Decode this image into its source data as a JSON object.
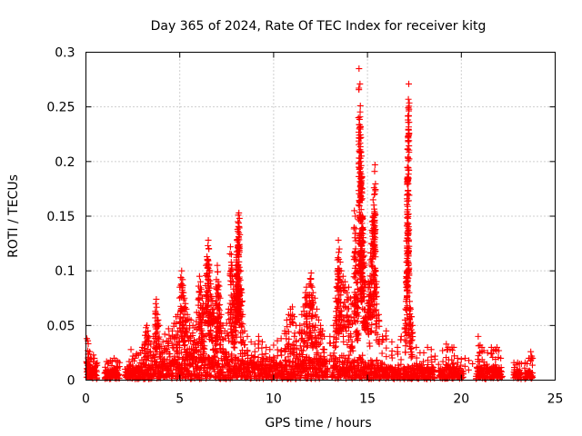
{
  "chart_data": {
    "type": "scatter",
    "title": "Day 365 of 2024, Rate Of TEC Index for receiver kitg",
    "xlabel": "GPS time / hours",
    "ylabel": "ROTI / TECUs",
    "xlim": [
      0,
      25
    ],
    "ylim": [
      0,
      0.3
    ],
    "grid": true,
    "marker": "+",
    "color": "#ff0000",
    "x_ticks": [
      0,
      5,
      10,
      15,
      20,
      25
    ],
    "x_tick_labels": [
      "0",
      "5",
      "10",
      "15",
      "20",
      "25"
    ],
    "y_ticks": [
      0,
      0.05,
      0.1,
      0.15,
      0.2,
      0.25,
      0.3
    ],
    "y_tick_labels": [
      "0",
      "0.05",
      "0.1",
      "0.15",
      "0.2",
      "0.25",
      "0.3"
    ],
    "series": [
      {
        "name": "ROTI",
        "points": [
          [
            0.05,
            0.038
          ],
          [
            0.1,
            0.036
          ],
          [
            0.1,
            0.027
          ],
          [
            0.15,
            0.024
          ],
          [
            0.2,
            0.026
          ],
          [
            0.25,
            0.02
          ],
          [
            0.3,
            0.019
          ],
          [
            0.4,
            0.023
          ],
          [
            0.45,
            0.02
          ],
          [
            0.55,
            0.015
          ],
          [
            0.6,
            0.016
          ],
          [
            1.1,
            0.017
          ],
          [
            1.2,
            0.016
          ],
          [
            1.3,
            0.018
          ],
          [
            1.4,
            0.017
          ],
          [
            1.5,
            0.02
          ],
          [
            1.6,
            0.018
          ],
          [
            1.7,
            0.017
          ],
          [
            1.8,
            0.016
          ],
          [
            2.2,
            0.012
          ],
          [
            2.3,
            0.017
          ],
          [
            2.4,
            0.028
          ],
          [
            2.5,
            0.022
          ],
          [
            2.6,
            0.02
          ],
          [
            2.7,
            0.024
          ],
          [
            2.8,
            0.023
          ],
          [
            2.9,
            0.025
          ],
          [
            3.0,
            0.03
          ],
          [
            3.1,
            0.029
          ],
          [
            3.15,
            0.041
          ],
          [
            3.2,
            0.048
          ],
          [
            3.25,
            0.05
          ],
          [
            3.3,
            0.045
          ],
          [
            3.35,
            0.04
          ],
          [
            3.45,
            0.033
          ],
          [
            3.6,
            0.04
          ],
          [
            3.7,
            0.063
          ],
          [
            3.72,
            0.07
          ],
          [
            3.75,
            0.074
          ],
          [
            3.8,
            0.06
          ],
          [
            3.85,
            0.055
          ],
          [
            3.9,
            0.05
          ],
          [
            4.0,
            0.031
          ],
          [
            4.1,
            0.035
          ],
          [
            4.2,
            0.042
          ],
          [
            4.3,
            0.036
          ],
          [
            4.4,
            0.047
          ],
          [
            4.5,
            0.038
          ],
          [
            4.6,
            0.045
          ],
          [
            4.7,
            0.052
          ],
          [
            4.8,
            0.058
          ],
          [
            4.9,
            0.06
          ],
          [
            5.0,
            0.085
          ],
          [
            5.05,
            0.094
          ],
          [
            5.1,
            0.1
          ],
          [
            5.15,
            0.092
          ],
          [
            5.2,
            0.08
          ],
          [
            5.25,
            0.075
          ],
          [
            5.3,
            0.07
          ],
          [
            5.35,
            0.065
          ],
          [
            5.4,
            0.06
          ],
          [
            5.5,
            0.056
          ],
          [
            5.6,
            0.055
          ],
          [
            5.7,
            0.05
          ],
          [
            5.8,
            0.048
          ],
          [
            5.9,
            0.062
          ],
          [
            6.0,
            0.086
          ],
          [
            6.05,
            0.095
          ],
          [
            6.1,
            0.09
          ],
          [
            6.15,
            0.083
          ],
          [
            6.2,
            0.075
          ],
          [
            6.25,
            0.07
          ],
          [
            6.3,
            0.062
          ],
          [
            6.4,
            0.105
          ],
          [
            6.45,
            0.113
          ],
          [
            6.5,
            0.123
          ],
          [
            6.52,
            0.128
          ],
          [
            6.55,
            0.12
          ],
          [
            6.6,
            0.1
          ],
          [
            6.65,
            0.088
          ],
          [
            6.7,
            0.075
          ],
          [
            6.75,
            0.072
          ],
          [
            6.8,
            0.065
          ],
          [
            6.9,
            0.07
          ],
          [
            6.95,
            0.092
          ],
          [
            7.0,
            0.105
          ],
          [
            7.02,
            0.099
          ],
          [
            7.05,
            0.09
          ],
          [
            7.1,
            0.086
          ],
          [
            7.15,
            0.075
          ],
          [
            7.2,
            0.06
          ],
          [
            7.3,
            0.05
          ],
          [
            7.4,
            0.045
          ],
          [
            7.5,
            0.052
          ],
          [
            7.6,
            0.065
          ],
          [
            7.7,
            0.122
          ],
          [
            7.75,
            0.115
          ],
          [
            7.8,
            0.095
          ],
          [
            7.85,
            0.09
          ],
          [
            7.9,
            0.079
          ],
          [
            7.95,
            0.075
          ],
          [
            8.0,
            0.105
          ],
          [
            8.02,
            0.11
          ],
          [
            8.05,
            0.128
          ],
          [
            8.08,
            0.138
          ],
          [
            8.1,
            0.145
          ],
          [
            8.12,
            0.151
          ],
          [
            8.15,
            0.153
          ],
          [
            8.18,
            0.148
          ],
          [
            8.2,
            0.133
          ],
          [
            8.25,
            0.1
          ],
          [
            8.3,
            0.08
          ],
          [
            8.35,
            0.06
          ],
          [
            8.45,
            0.045
          ],
          [
            8.6,
            0.04
          ],
          [
            8.8,
            0.035
          ],
          [
            9.0,
            0.033
          ],
          [
            9.2,
            0.04
          ],
          [
            9.4,
            0.035
          ],
          [
            9.6,
            0.03
          ],
          [
            9.8,
            0.028
          ],
          [
            10.0,
            0.032
          ],
          [
            10.2,
            0.036
          ],
          [
            10.4,
            0.038
          ],
          [
            10.6,
            0.045
          ],
          [
            10.7,
            0.055
          ],
          [
            10.8,
            0.06
          ],
          [
            10.9,
            0.065
          ],
          [
            11.0,
            0.067
          ],
          [
            11.1,
            0.058
          ],
          [
            11.2,
            0.05
          ],
          [
            11.4,
            0.05
          ],
          [
            11.5,
            0.06
          ],
          [
            11.6,
            0.067
          ],
          [
            11.7,
            0.08
          ],
          [
            11.75,
            0.085
          ],
          [
            11.8,
            0.078
          ],
          [
            11.9,
            0.088
          ],
          [
            11.95,
            0.093
          ],
          [
            12.0,
            0.098
          ],
          [
            12.05,
            0.085
          ],
          [
            12.1,
            0.08
          ],
          [
            12.2,
            0.075
          ],
          [
            12.3,
            0.065
          ],
          [
            12.4,
            0.055
          ],
          [
            12.5,
            0.05
          ],
          [
            12.6,
            0.045
          ],
          [
            12.7,
            0.04
          ],
          [
            13.0,
            0.04
          ],
          [
            13.2,
            0.05
          ],
          [
            13.3,
            0.075
          ],
          [
            13.35,
            0.085
          ],
          [
            13.4,
            0.11
          ],
          [
            13.45,
            0.128
          ],
          [
            13.5,
            0.12
          ],
          [
            13.55,
            0.108
          ],
          [
            13.6,
            0.1
          ],
          [
            13.7,
            0.095
          ],
          [
            13.8,
            0.09
          ],
          [
            13.9,
            0.08
          ],
          [
            14.0,
            0.085
          ],
          [
            14.1,
            0.075
          ],
          [
            14.2,
            0.07
          ],
          [
            14.3,
            0.155
          ],
          [
            14.35,
            0.15
          ],
          [
            14.4,
            0.11
          ],
          [
            14.45,
            0.1
          ],
          [
            14.5,
            0.098
          ],
          [
            14.55,
            0.285
          ],
          [
            14.6,
            0.271
          ],
          [
            14.62,
            0.251
          ],
          [
            14.65,
            0.222
          ],
          [
            14.68,
            0.205
          ],
          [
            14.7,
            0.185
          ],
          [
            14.72,
            0.166
          ],
          [
            14.75,
            0.148
          ],
          [
            14.8,
            0.126
          ],
          [
            14.85,
            0.105
          ],
          [
            14.9,
            0.085
          ],
          [
            15.0,
            0.07
          ],
          [
            15.05,
            0.09
          ],
          [
            15.1,
            0.085
          ],
          [
            15.15,
            0.11
          ],
          [
            15.2,
            0.125
          ],
          [
            15.25,
            0.145
          ],
          [
            15.3,
            0.165
          ],
          [
            15.35,
            0.176
          ],
          [
            15.38,
            0.191
          ],
          [
            15.4,
            0.197
          ],
          [
            15.45,
            0.1
          ],
          [
            15.5,
            0.085
          ],
          [
            15.6,
            0.06
          ],
          [
            15.8,
            0.04
          ],
          [
            16.0,
            0.045
          ],
          [
            16.3,
            0.035
          ],
          [
            16.6,
            0.03
          ],
          [
            16.8,
            0.04
          ],
          [
            17.0,
            0.055
          ],
          [
            17.05,
            0.072
          ],
          [
            17.08,
            0.108
          ],
          [
            17.1,
            0.141
          ],
          [
            17.12,
            0.181
          ],
          [
            17.14,
            0.211
          ],
          [
            17.16,
            0.238
          ],
          [
            17.18,
            0.257
          ],
          [
            17.2,
            0.271
          ],
          [
            17.22,
            0.08
          ],
          [
            17.25,
            0.072
          ],
          [
            17.3,
            0.065
          ],
          [
            17.35,
            0.058
          ],
          [
            17.4,
            0.05
          ],
          [
            17.6,
            0.03
          ],
          [
            17.8,
            0.025
          ],
          [
            18.0,
            0.025
          ],
          [
            18.2,
            0.03
          ],
          [
            18.4,
            0.028
          ],
          [
            18.6,
            0.022
          ],
          [
            19.0,
            0.027
          ],
          [
            19.2,
            0.033
          ],
          [
            19.3,
            0.03
          ],
          [
            19.4,
            0.028
          ],
          [
            19.5,
            0.03
          ],
          [
            19.6,
            0.03
          ],
          [
            19.8,
            0.02
          ],
          [
            20.0,
            0.019
          ],
          [
            20.2,
            0.02
          ],
          [
            20.4,
            0.018
          ],
          [
            20.6,
            0.015
          ],
          [
            20.9,
            0.04
          ],
          [
            21.0,
            0.032
          ],
          [
            21.1,
            0.03
          ],
          [
            21.2,
            0.027
          ],
          [
            21.4,
            0.025
          ],
          [
            21.6,
            0.03
          ],
          [
            21.7,
            0.027
          ],
          [
            21.8,
            0.028
          ],
          [
            21.9,
            0.03
          ],
          [
            22.0,
            0.027
          ],
          [
            22.1,
            0.02
          ],
          [
            22.8,
            0.016
          ],
          [
            22.9,
            0.014
          ],
          [
            23.0,
            0.016
          ],
          [
            23.1,
            0.015
          ],
          [
            23.2,
            0.015
          ],
          [
            23.4,
            0.016
          ],
          [
            23.5,
            0.015
          ],
          [
            23.6,
            0.02
          ],
          [
            23.7,
            0.026
          ],
          [
            23.75,
            0.022
          ],
          [
            23.8,
            0.02
          ]
        ],
        "dense_band": {
          "segments": [
            [
              0.05,
              0.6
            ],
            [
              1.0,
              1.8
            ],
            [
              2.1,
              12.9
            ],
            [
              13.1,
              16.8
            ],
            [
              16.9,
              18.6
            ],
            [
              18.8,
              20.1
            ],
            [
              20.8,
              22.2
            ],
            [
              22.8,
              23.2
            ],
            [
              23.4,
              23.8
            ]
          ],
          "x_step": 0.035,
          "band_top": [
            [
              0,
              0.02
            ],
            [
              0.6,
              0.015
            ],
            [
              1.0,
              0.012
            ],
            [
              1.8,
              0.012
            ],
            [
              2.1,
              0.01
            ],
            [
              3.0,
              0.018
            ],
            [
              4.5,
              0.024
            ],
            [
              5.5,
              0.028
            ],
            [
              6.5,
              0.027
            ],
            [
              8.0,
              0.024
            ],
            [
              9.5,
              0.019
            ],
            [
              11.0,
              0.022
            ],
            [
              12.5,
              0.026
            ],
            [
              13.5,
              0.022
            ],
            [
              14.5,
              0.024
            ],
            [
              15.5,
              0.018
            ],
            [
              16.5,
              0.013
            ],
            [
              17.5,
              0.013
            ],
            [
              18.5,
              0.013
            ],
            [
              19.5,
              0.015
            ],
            [
              20.0,
              0.011
            ],
            [
              21.0,
              0.015
            ],
            [
              22.0,
              0.011
            ],
            [
              23.0,
              0.008
            ],
            [
              23.8,
              0.01
            ]
          ]
        }
      }
    ]
  }
}
